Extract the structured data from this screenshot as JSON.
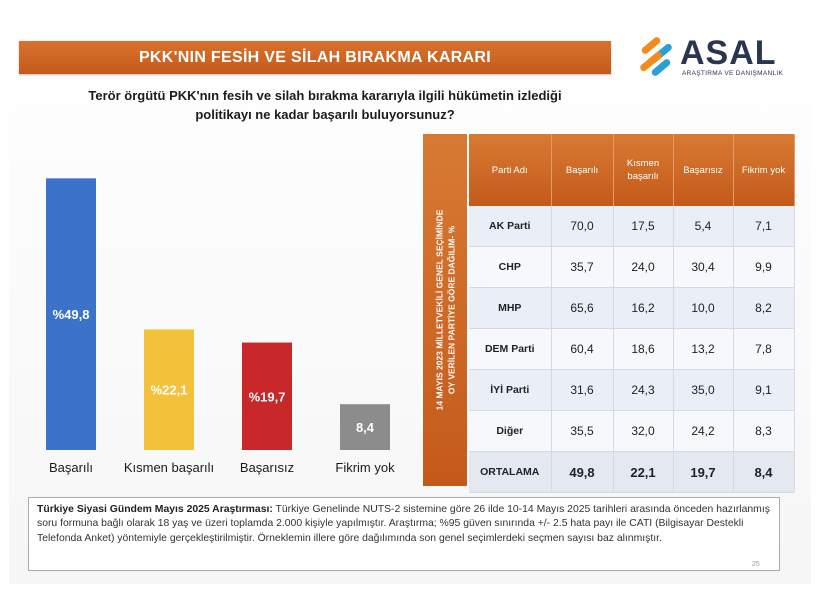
{
  "title": "PKK'NIN FESİH VE SİLAH BIRAKMA KARARI",
  "logo": {
    "word": "ASAL",
    "subtitle": "ARAŞTIRMA VE DANIŞMANLIK",
    "colors": [
      "#f28a1e",
      "#2a9fd8",
      "#2a3550"
    ]
  },
  "question": {
    "line1": "Terör örgütü PKK'nın fesih ve silah bırakma kararıyla ilgili hükümetin izlediği",
    "line2": "politikayı ne kadar başarılı buluyorsunuz?"
  },
  "chart_data": [
    {
      "type": "bar",
      "categories": [
        "Başarılı",
        "Kısmen başarılı",
        "Başarısız",
        "Fikrim yok"
      ],
      "values": [
        49.8,
        22.1,
        19.7,
        8.4
      ],
      "data_labels": [
        "%49,8",
        "%22,1",
        "%19,7",
        "8,4"
      ],
      "colors": [
        "#3b73c9",
        "#f3c23a",
        "#c8282a",
        "#8c8c8c"
      ],
      "label_colors": [
        "#ffffff",
        "#ffffff",
        "#ffffff",
        "#ffffff"
      ],
      "title": "",
      "xlabel": "",
      "ylabel": "",
      "ylim": [
        0,
        55
      ],
      "grid": false,
      "legend": "none"
    },
    {
      "type": "table",
      "side_label_line1": "14 MAYIS 2023 MİLLETVEKİLİ GENEL SEÇİMİNDE",
      "side_label_line2": "OY VERİLEN PARTİYE GÖRE DAĞILIM- %",
      "columns": [
        "Parti Adı",
        "Başarılı",
        "Kısmen başarılı",
        "Başarısız",
        "Fikrim yok"
      ],
      "rows": [
        {
          "party": "AK Parti",
          "values": [
            "70,0",
            "17,5",
            "5,4",
            "7,1"
          ]
        },
        {
          "party": "CHP",
          "values": [
            "35,7",
            "24,0",
            "30,4",
            "9,9"
          ]
        },
        {
          "party": "MHP",
          "values": [
            "65,6",
            "16,2",
            "10,0",
            "8,2"
          ]
        },
        {
          "party": "DEM Parti",
          "values": [
            "60,4",
            "18,6",
            "13,2",
            "7,8"
          ]
        },
        {
          "party": "İYİ Parti",
          "values": [
            "31,6",
            "24,3",
            "35,0",
            "9,1"
          ]
        },
        {
          "party": "Diğer",
          "values": [
            "35,5",
            "32,0",
            "24,2",
            "8,3"
          ]
        }
      ],
      "average": {
        "party": "ORTALAMA",
        "values": [
          "49,8",
          "22,1",
          "19,7",
          "8,4"
        ]
      }
    }
  ],
  "footer": {
    "bold": "Türkiye Siyasi Gündem Mayıs 2025 Araştırması:",
    "text": " Türkiye Genelinde NUTS-2 sistemine göre 26 ilde 10-14 Mayıs 2025 tarihleri arasında önceden hazırlanmış soru formuna bağlı olarak 18 yaş ve üzeri toplamda 2.000 kişiyle yapılmıştır. Araştırma; %95 güven sınırında +/- 2.5 hata payı ile CATI (Bilgisayar Destekli Telefonda Anket) yöntemiyle gerçekleştirilmiştir. Örneklemin illere göre dağılımında son genel seçimlerdeki seçmen sayısı baz alınmıştır."
  },
  "page_number": "25"
}
